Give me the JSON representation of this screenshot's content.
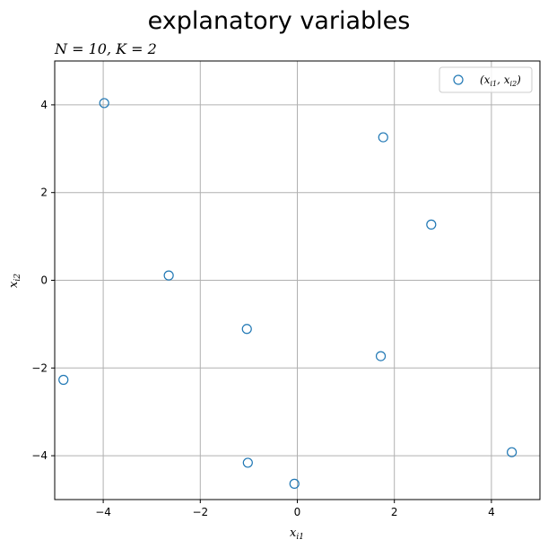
{
  "chart_data": {
    "type": "scatter",
    "title": "explanatory variables",
    "subtitle": "N = 10, K = 2",
    "xlabel": "x_i1",
    "ylabel": "x_i2",
    "xlim": [
      -5.0,
      5.0
    ],
    "ylim": [
      -5.0,
      5.0
    ],
    "xticks": [
      -4,
      -2,
      0,
      2,
      4
    ],
    "yticks": [
      -4,
      -2,
      0,
      2,
      4
    ],
    "xtick_labels": [
      "−4",
      "−2",
      "0",
      "2",
      "4"
    ],
    "ytick_labels": [
      "−4",
      "−2",
      "0",
      "2",
      "4"
    ],
    "grid": true,
    "legend_position": "top-right",
    "marker_color": "#1f77b4",
    "series": [
      {
        "name": "(x_i1, x_i2)",
        "x": [
          -3.98,
          1.77,
          2.76,
          -2.65,
          -1.04,
          1.72,
          -4.82,
          -1.02,
          -0.06,
          4.42
        ],
        "y": [
          4.04,
          3.26,
          1.27,
          0.11,
          -1.11,
          -1.73,
          -2.27,
          -4.16,
          -4.64,
          -3.92
        ]
      }
    ]
  }
}
